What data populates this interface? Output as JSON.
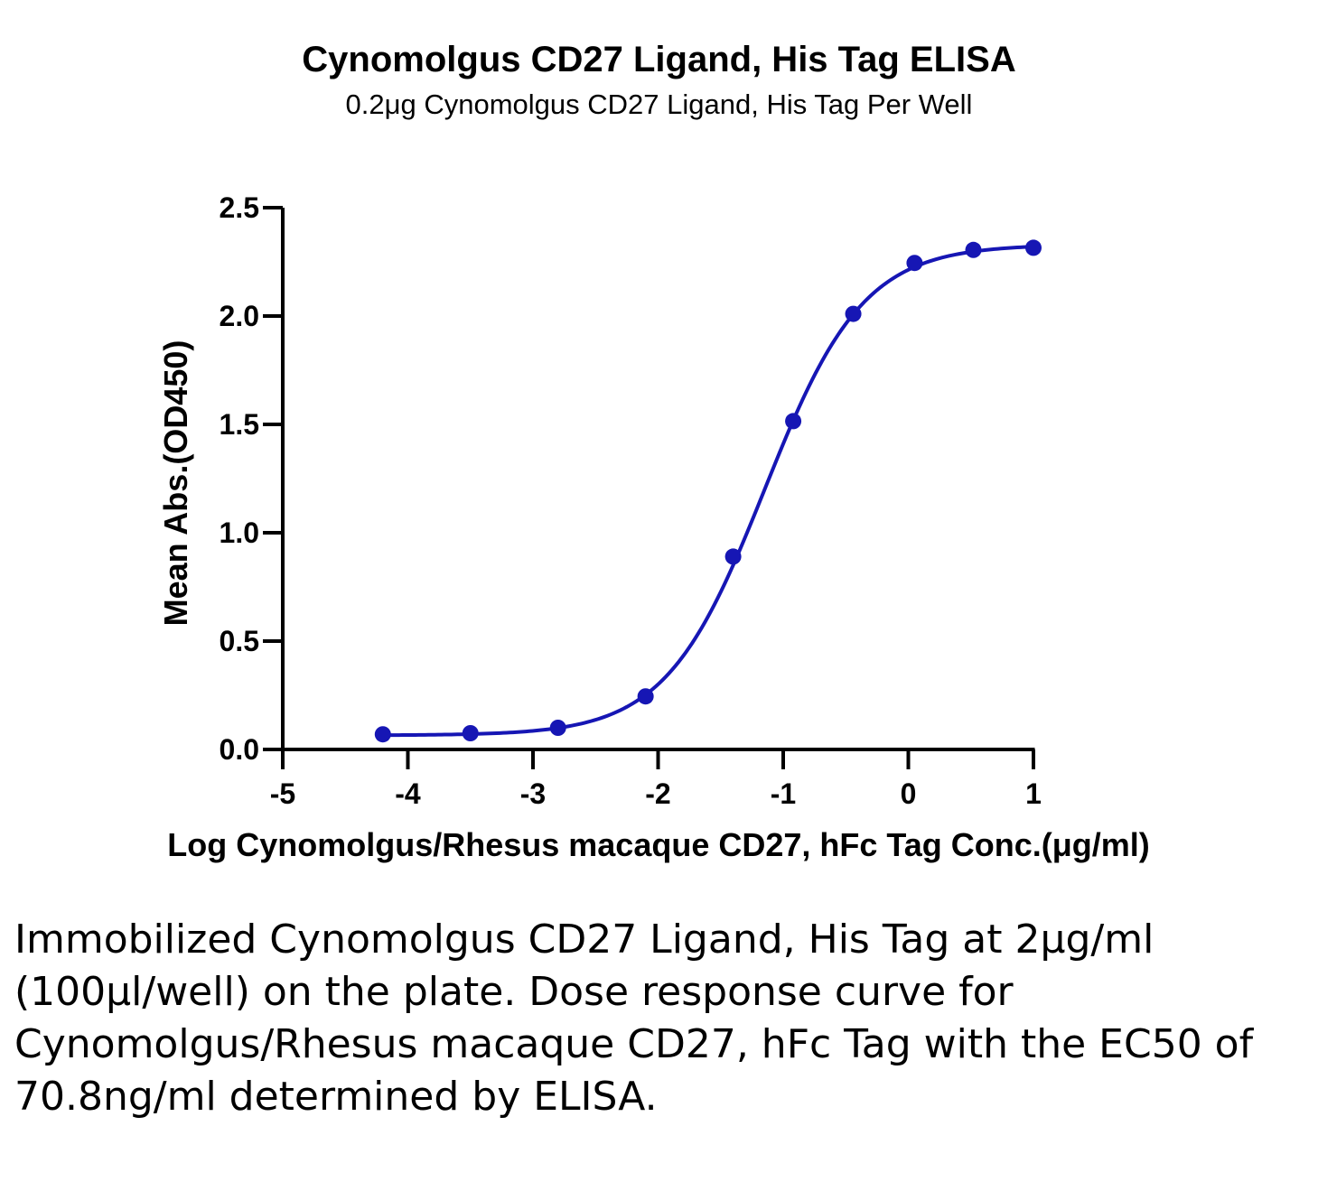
{
  "colors": {
    "series": "#1616b4",
    "axis": "#000000",
    "background": "#ffffff"
  },
  "chart_data": {
    "type": "scatter",
    "title": "Cynomolgus CD27 Ligand, His Tag ELISA",
    "subtitle": "0.2μg Cynomolgus CD27 Ligand, His Tag Per Well",
    "xlabel": "Log Cynomolgus/Rhesus macaque CD27, hFc Tag Conc.(μg/ml)",
    "ylabel": "Mean Abs.(OD450)",
    "xlim": [
      -5,
      1
    ],
    "ylim": [
      0,
      2.5
    ],
    "x_ticks": [
      "-5",
      "-4",
      "-3",
      "-2",
      "-1",
      "0",
      "1"
    ],
    "y_ticks": [
      "0.0",
      "0.5",
      "1.0",
      "1.5",
      "2.0",
      "2.5"
    ],
    "grid": false,
    "series": [
      {
        "points": [
          {
            "x": -4.2,
            "y": 0.07
          },
          {
            "x": -3.5,
            "y": 0.075
          },
          {
            "x": -2.8,
            "y": 0.1
          },
          {
            "x": -2.1,
            "y": 0.245
          },
          {
            "x": -1.4,
            "y": 0.89
          },
          {
            "x": -0.92,
            "y": 1.515
          },
          {
            "x": -0.44,
            "y": 2.01
          },
          {
            "x": 0.05,
            "y": 2.245
          },
          {
            "x": 0.52,
            "y": 2.305
          },
          {
            "x": 1.0,
            "y": 2.315
          }
        ],
        "fit": {
          "model": "four-parameter logistic",
          "bottom": 0.065,
          "top": 2.33,
          "log_ec50": -1.15,
          "hill_slope": 1.1
        }
      }
    ]
  },
  "caption": "Immobilized Cynomolgus CD27 Ligand, His Tag at 2μg/ml (100μl/well) on the plate. Dose response curve for Cynomolgus/Rhesus macaque CD27, hFc Tag with the EC50 of 70.8ng/ml determined by ELISA."
}
